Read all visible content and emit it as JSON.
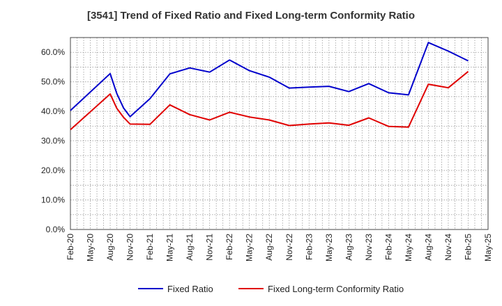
{
  "chart_data": {
    "type": "line",
    "title": "[3541]  Trend of Fixed Ratio and Fixed Long-term Conformity Ratio",
    "xlabel": "",
    "ylabel": "",
    "x_tick_labels": [
      "Feb-20",
      "May-20",
      "Aug-20",
      "Nov-20",
      "Feb-21",
      "May-21",
      "Aug-21",
      "Nov-21",
      "Feb-22",
      "May-22",
      "Aug-22",
      "Nov-22",
      "Feb-23",
      "May-23",
      "Aug-23",
      "Nov-23",
      "Feb-24",
      "May-24",
      "Aug-24",
      "Nov-24",
      "Feb-25",
      "May-25"
    ],
    "y_tick_labels": [
      "0.0%",
      "10.0%",
      "20.0%",
      "30.0%",
      "40.0%",
      "50.0%",
      "60.0%"
    ],
    "ylim": [
      0,
      65
    ],
    "grid": true,
    "legend": "bottom",
    "series": [
      {
        "name": "Fixed Ratio",
        "color": "#0000cc",
        "points": [
          {
            "x": "2020-02",
            "y": 40.3
          },
          {
            "x": "2020-08",
            "y": 52.8
          },
          {
            "x": "2020-09",
            "y": 46.0
          },
          {
            "x": "2020-10",
            "y": 41.2
          },
          {
            "x": "2020-11",
            "y": 38.2
          },
          {
            "x": "2021-02",
            "y": 44.3
          },
          {
            "x": "2021-05",
            "y": 52.7
          },
          {
            "x": "2021-08",
            "y": 54.7
          },
          {
            "x": "2021-11",
            "y": 53.3
          },
          {
            "x": "2022-02",
            "y": 57.4
          },
          {
            "x": "2022-05",
            "y": 53.8
          },
          {
            "x": "2022-08",
            "y": 51.6
          },
          {
            "x": "2022-11",
            "y": 47.9
          },
          {
            "x": "2023-02",
            "y": 48.2
          },
          {
            "x": "2023-05",
            "y": 48.5
          },
          {
            "x": "2023-08",
            "y": 46.7
          },
          {
            "x": "2023-11",
            "y": 49.4
          },
          {
            "x": "2024-02",
            "y": 46.3
          },
          {
            "x": "2024-05",
            "y": 45.6
          },
          {
            "x": "2024-08",
            "y": 63.3
          },
          {
            "x": "2024-11",
            "y": 60.4
          },
          {
            "x": "2025-02",
            "y": 57.1
          }
        ]
      },
      {
        "name": "Fixed Long-term Conformity Ratio",
        "color": "#e00000",
        "points": [
          {
            "x": "2020-02",
            "y": 33.8
          },
          {
            "x": "2020-08",
            "y": 45.9
          },
          {
            "x": "2020-09",
            "y": 41.0
          },
          {
            "x": "2020-10",
            "y": 38.0
          },
          {
            "x": "2020-11",
            "y": 35.7
          },
          {
            "x": "2021-02",
            "y": 35.6
          },
          {
            "x": "2021-05",
            "y": 42.2
          },
          {
            "x": "2021-08",
            "y": 38.9
          },
          {
            "x": "2021-11",
            "y": 37.1
          },
          {
            "x": "2022-02",
            "y": 39.7
          },
          {
            "x": "2022-05",
            "y": 38.1
          },
          {
            "x": "2022-08",
            "y": 37.1
          },
          {
            "x": "2022-11",
            "y": 35.2
          },
          {
            "x": "2023-02",
            "y": 35.7
          },
          {
            "x": "2023-05",
            "y": 36.1
          },
          {
            "x": "2023-08",
            "y": 35.3
          },
          {
            "x": "2023-11",
            "y": 37.8
          },
          {
            "x": "2024-02",
            "y": 34.9
          },
          {
            "x": "2024-05",
            "y": 34.7
          },
          {
            "x": "2024-08",
            "y": 49.2
          },
          {
            "x": "2024-11",
            "y": 48.0
          },
          {
            "x": "2025-02",
            "y": 53.5
          }
        ]
      }
    ]
  }
}
